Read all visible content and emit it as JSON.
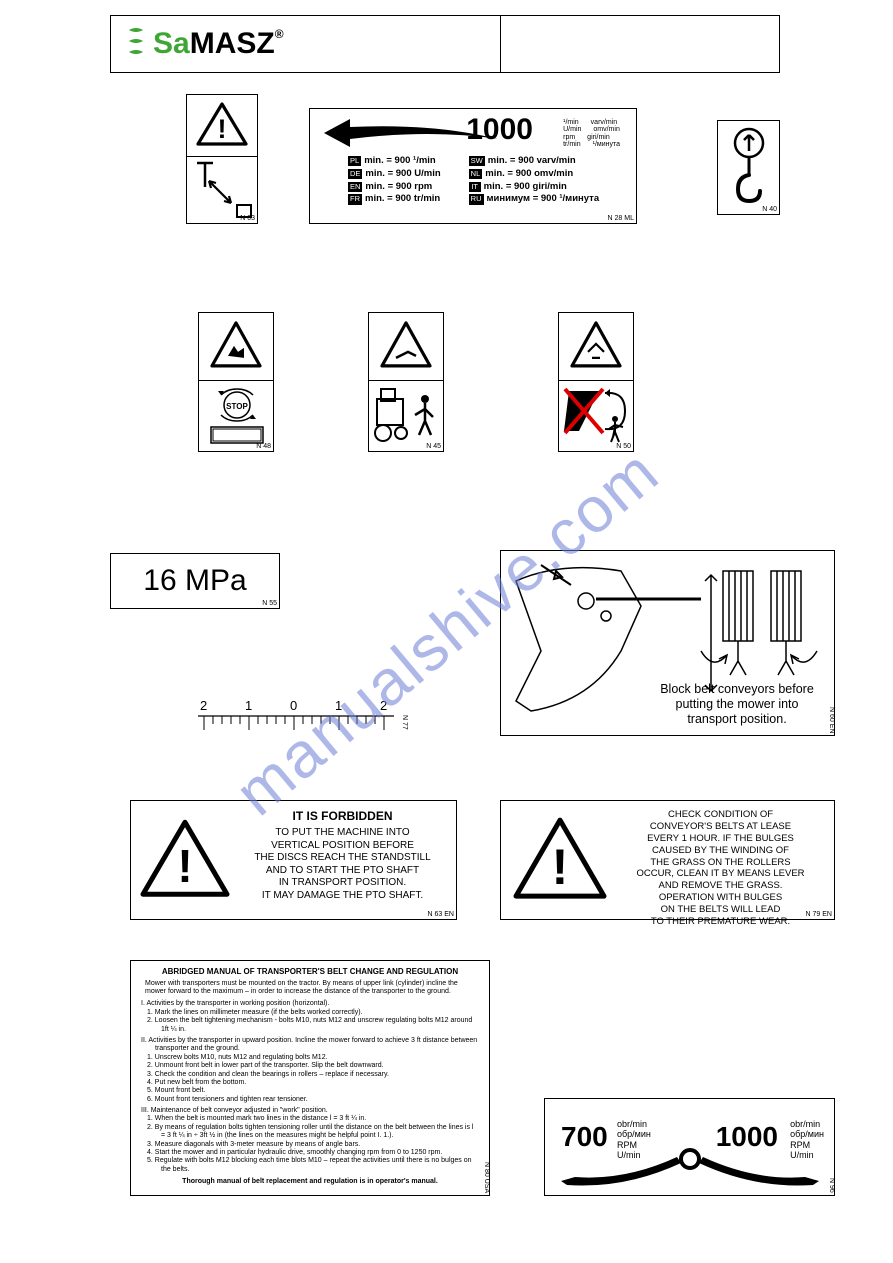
{
  "watermark": "manualshive.com",
  "logo": {
    "sa": "Sa",
    "masz": "MASZ",
    "reg": "®"
  },
  "n03_ref": "N 03",
  "p1000": {
    "big": "1000",
    "units": [
      [
        "¹/min",
        "varv/min"
      ],
      [
        "U/min",
        "omv/min"
      ],
      [
        "rpm",
        "giri/min"
      ],
      [
        "tr/min",
        "¹/минута"
      ]
    ],
    "left_col": [
      {
        "tag": "PL",
        "text": "min. = 900 ¹/min"
      },
      {
        "tag": "DE",
        "text": "min. = 900 U/min"
      },
      {
        "tag": "EN",
        "text": "min. = 900 rpm"
      },
      {
        "tag": "FR",
        "text": "min. = 900 tr/min"
      }
    ],
    "right_col": [
      {
        "tag": "SW",
        "text": "min. = 900 varv/min"
      },
      {
        "tag": "NL",
        "text": "min. = 900 omv/min"
      },
      {
        "tag": "IT",
        "text": "min. = 900 giri/min"
      },
      {
        "tag": "RU",
        "text": "минимум = 900 ¹/минута"
      }
    ],
    "ref": "N 28 ML"
  },
  "n40_ref": "N 40",
  "n48_ref": "N 48",
  "n45_ref": "N 45",
  "n50_ref": "N 50",
  "mpa": {
    "text": "16 MPa",
    "ref": "N 55"
  },
  "ruler": {
    "labels": [
      "2",
      "1",
      "0",
      "1",
      "2"
    ],
    "ref": "N 77"
  },
  "n60": {
    "text": "Block belt conveyors before putting the mower into transport position.",
    "ref": "N 60 EN"
  },
  "n63": {
    "title": "IT IS FORBIDDEN",
    "body": "TO PUT THE MACHINE INTO\nVERTICAL POSITION BEFORE\nTHE DISCS REACH THE STANDSTILL\nAND TO START THE PTO SHAFT\nIN TRANSPORT POSITION.\nIT MAY DAMAGE THE PTO SHAFT.",
    "ref": "N 63 EN"
  },
  "n79": {
    "body": "CHECK CONDITION OF\nCONVEYOR'S BELTS AT LEASE\nEVERY 1 HOUR. IF THE BULGES\nCAUSED BY THE WINDING OF\nTHE GRASS ON THE ROLLERS\nOCCUR, CLEAN IT BY MEANS LEVER\nAND REMOVE THE GRASS.\nOPERATION WITH BULGES\nON THE BELTS WILL LEAD\nTO THEIR PREMATURE WEAR.",
    "ref": "N 79 EN"
  },
  "manual": {
    "title": "ABRIDGED MANUAL OF TRANSPORTER'S BELT CHANGE AND REGULATION",
    "intro": "Mower with transporters must be mounted on the tractor. By means of upper link (cylinder) incline the mower forward to the maximum – in order to increase the distance of the transporter to the ground.",
    "sections": [
      {
        "num": "I.",
        "head": "Activities by the transporter in working position (horizontal).",
        "items": [
          "1. Mark the lines on millimeter measure (if the belts worked correctly).",
          "2. Loosen the belt tightening mechanism - bolts M10, nuts M12 and unscrew regulating bolts M12 around 1ft ¼ in."
        ]
      },
      {
        "num": "II.",
        "head": "Activities by the transporter in upward position. Incline the mower forward to achieve 3 ft distance between transporter and the ground.",
        "items": [
          "1. Unscrew bolts M10, nuts M12 and regulating bolts M12.",
          "2. Unmount front belt in lower part of the transporter. Slip the belt downward.",
          "3. Check the condition and clean the bearings in rollers – replace if necessary.",
          "4. Put new belt from the bottom.",
          "5. Mount front belt.",
          "6. Mount front tensioners and tighten rear tensioner."
        ]
      },
      {
        "num": "III.",
        "head": "Maintenance of belt conveyor adjusted in \"work\" position.",
        "items": [
          "1. When the belt is mounted mark two lines in the distance l = 3 ft ¼ in.",
          "2. By means of regulation bolts tighten tensioning roller until the distance on the belt between the lines is l = 3 ft ¼ in ÷ 3ft ½ in (the lines on the measures might be helpful point I. 1.).",
          "3. Measure diagonals with 3-meter measure by means of angle bars.",
          "4. Start the mower and in particular hydraulic drive, smoothly changing rpm from 0 to 1250 rpm.",
          "5. Regulate with bolts M12 blocking each time blots M10 – repeat the activities until there is no bulges on the belts."
        ]
      }
    ],
    "footer": "Thorough manual of belt replacement and regulation is in operator's manual.",
    "ref": "N 80 USA"
  },
  "gauge": {
    "left_num": "700",
    "right_num": "1000",
    "units": "obr/min\nобр/мин\nRPM\nU/min",
    "ref": "N 96"
  }
}
